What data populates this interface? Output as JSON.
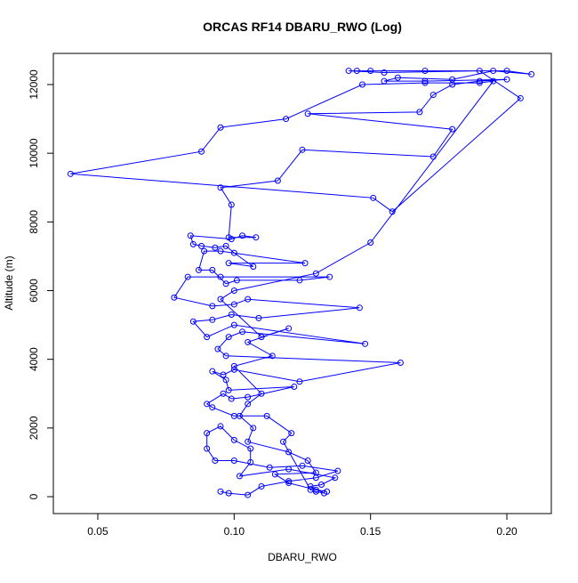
{
  "chart_data": {
    "type": "line",
    "title": "ORCAS RF14 DBARU_RWO (Log)",
    "x_label": "DBARU_RWO",
    "y_label": "Altitude (m)",
    "color": "#0000ff",
    "markers": true,
    "grid": false,
    "xlim": [
      0.0337,
      0.2163
    ],
    "ylim": [
      -492,
      12907
    ],
    "xticks": [
      0.05,
      {
        "value": 0.1,
        "label": "0.10"
      },
      0.15,
      {
        "value": 0.2,
        "label": "0.20"
      }
    ],
    "yticks": [
      0,
      2000,
      4000,
      6000,
      8000,
      10000,
      12000
    ],
    "x": [
      0.095,
      0.098,
      0.105,
      0.11,
      0.12,
      0.13,
      0.138,
      0.125,
      0.113,
      0.1,
      0.093,
      0.09,
      0.09,
      0.095,
      0.1,
      0.106,
      0.106,
      0.102,
      0.12,
      0.137,
      0.132,
      0.128,
      0.133,
      0.13,
      0.128,
      0.118,
      0.121,
      0.112,
      0.1,
      0.092,
      0.09,
      0.096,
      0.099,
      0.105,
      0.122,
      0.098,
      0.097,
      0.092,
      0.096,
      0.1,
      0.124,
      0.161,
      0.097,
      0.094,
      0.098,
      0.103,
      0.148,
      0.1,
      0.09,
      0.085,
      0.092,
      0.099,
      0.109,
      0.146,
      0.105,
      0.1,
      0.092,
      0.078,
      0.083,
      0.095,
      0.135,
      0.124,
      0.101,
      0.097,
      0.092,
      0.087,
      0.089,
      0.095,
      0.126,
      0.098,
      0.107,
      0.1,
      0.097,
      0.093,
      0.088,
      0.085,
      0.084,
      0.099,
      0.103,
      0.108,
      0.098,
      0.099,
      0.095,
      0.116,
      0.125,
      0.173,
      0.18,
      0.127,
      0.168,
      0.173,
      0.18,
      0.19,
      0.2,
      0.17,
      0.155,
      0.16,
      0.18,
      0.195,
      0.209,
      0.2,
      0.17,
      0.15,
      0.145,
      0.142,
      0.155,
      0.19,
      0.205,
      0.158,
      0.151,
      0.04,
      0.088,
      0.095,
      0.119,
      0.147,
      0.17,
      0.19,
      0.195,
      0.15,
      0.13,
      0.1,
      0.095,
      0.11,
      0.12,
      0.105,
      0.114,
      0.1,
      0.11,
      0.105,
      0.102,
      0.107,
      0.105,
      0.12,
      0.127,
      0.13,
      0.115,
      0.12,
      0.13,
      0.134
    ],
    "y": [
      150,
      100,
      50,
      300,
      450,
      550,
      750,
      900,
      850,
      1050,
      1050,
      1400,
      1850,
      2050,
      1650,
      1400,
      1000,
      600,
      800,
      550,
      350,
      300,
      100,
      150,
      200,
      1600,
      1850,
      2350,
      2350,
      2600,
      2700,
      3000,
      2850,
      2900,
      3200,
      3100,
      3400,
      3650,
      3550,
      3700,
      3350,
      3900,
      4100,
      4300,
      4650,
      4800,
      4450,
      5000,
      4650,
      5100,
      5150,
      5300,
      5200,
      5500,
      5750,
      5600,
      5550,
      5800,
      6400,
      6400,
      6400,
      6300,
      6300,
      6200,
      6600,
      6600,
      7150,
      7150,
      6800,
      6800,
      6700,
      7100,
      7300,
      7250,
      7300,
      7350,
      7600,
      7500,
      7600,
      7550,
      7550,
      8500,
      9000,
      9200,
      10100,
      9900,
      10700,
      11150,
      11200,
      11700,
      12000,
      12100,
      12150,
      12100,
      12100,
      12200,
      12150,
      12400,
      12300,
      12400,
      12400,
      12400,
      12400,
      12400,
      12350,
      12400,
      11600,
      8300,
      8700,
      9400,
      10050,
      10750,
      11000,
      12000,
      12050,
      12050,
      12100,
      7400,
      6500,
      6000,
      5750,
      4650,
      4900,
      4500,
      4100,
      3800,
      3000,
      2700,
      2350,
      2000,
      1600,
      1300,
      1050,
      700,
      650,
      400,
      200,
      150
    ]
  }
}
